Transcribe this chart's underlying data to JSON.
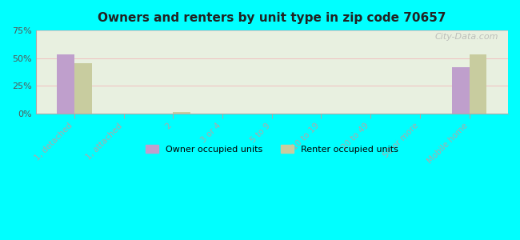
{
  "title": "Owners and renters by unit type in zip code 70657",
  "categories": [
    "1, detached",
    "1, attached",
    "2",
    "3 or 4",
    "5 to 9",
    "10 to 19",
    "20 to 49",
    "50 or more",
    "Mobile home"
  ],
  "owner_values": [
    53,
    0,
    0,
    0,
    0,
    0,
    0,
    0,
    42
  ],
  "renter_values": [
    45,
    0,
    1,
    0,
    0,
    0,
    0,
    0,
    53
  ],
  "owner_color": "#bf9fcc",
  "renter_color": "#c8cc9f",
  "background_color": "#00ffff",
  "plot_bg_top": "#e8f0e0",
  "plot_bg_bottom": "#f5f8f0",
  "ylim": [
    0,
    75
  ],
  "yticks": [
    0,
    25,
    50,
    75
  ],
  "bar_width": 0.35,
  "legend_owner": "Owner occupied units",
  "legend_renter": "Renter occupied units",
  "watermark": "City-Data.com"
}
